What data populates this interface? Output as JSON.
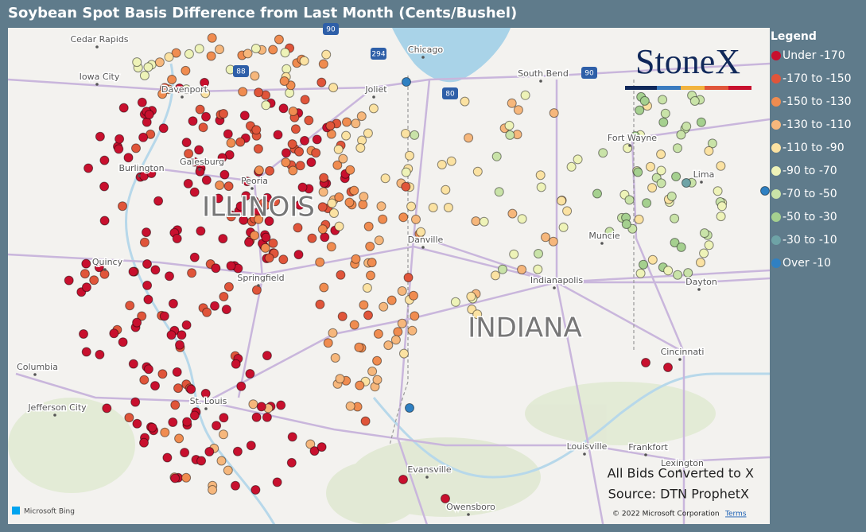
{
  "header": {
    "title": "Soybean Spot Basis Difference from Last Month (Cents/Bushel)"
  },
  "legend": {
    "title": "Legend",
    "items": [
      {
        "label": "Under -170",
        "color": "#c8102e"
      },
      {
        "label": "-170 to -150",
        "color": "#e0553a"
      },
      {
        "label": "-150 to -130",
        "color": "#f08c50"
      },
      {
        "label": "-130 to -110",
        "color": "#f6b77c"
      },
      {
        "label": "-110 to -90",
        "color": "#fbe2a2"
      },
      {
        "label": "-90 to -70",
        "color": "#eef3b8"
      },
      {
        "label": "-70 to -50",
        "color": "#c9e3a8"
      },
      {
        "label": "-50 to -30",
        "color": "#a5d08f"
      },
      {
        "label": "-30 to -10",
        "color": "#6ea3a6"
      },
      {
        "label": "Over -10",
        "color": "#2f80c2"
      }
    ]
  },
  "map": {
    "state_labels": [
      "ILLINOIS",
      "INDIANA"
    ],
    "city_labels": [
      "Cedar Rapids",
      "Iowa City",
      "Davenport",
      "Galesburg",
      "Burlington",
      "Peoria",
      "Quincy",
      "Springfield",
      "Columbia",
      "Jefferson City",
      "St. Louis",
      "Chicago",
      "Joliet",
      "South Bend",
      "Fort Wayne",
      "Lima",
      "Muncie",
      "Danville",
      "Indianapolis",
      "Dayton",
      "Cincinnati",
      "Louisville",
      "Frankfort",
      "Lexington",
      "Evansville",
      "Owensboro"
    ],
    "highway_shields": [
      "90",
      "294",
      "88",
      "80",
      "90"
    ],
    "notes": [
      "All Bids Converted to X",
      "Source: DTN ProphetX"
    ],
    "logo": "StoneX",
    "attribution": {
      "provider": "Microsoft Bing",
      "copyright": "© 2022 Microsoft Corporation",
      "terms": "Terms"
    }
  }
}
